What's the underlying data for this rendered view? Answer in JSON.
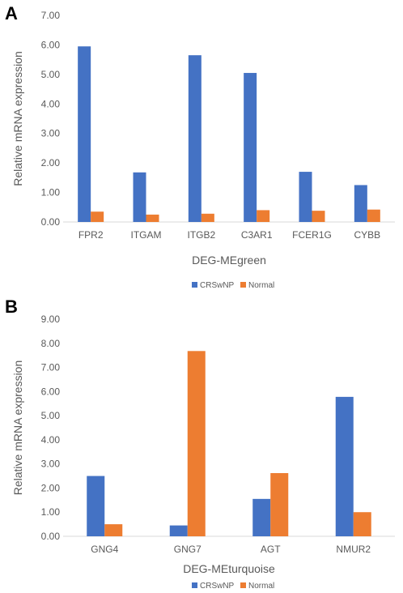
{
  "chart_data": [
    {
      "panel": "A",
      "type": "bar",
      "title": "",
      "xlabel": "DEG-MEgreen",
      "ylabel": "Relative mRNA expression",
      "ylim": [
        0,
        7
      ],
      "yticks": [
        "0.00",
        "1.00",
        "2.00",
        "3.00",
        "4.00",
        "5.00",
        "6.00",
        "7.00"
      ],
      "categories": [
        "FPR2",
        "ITGAM",
        "ITGB2",
        "C3AR1",
        "FCER1G",
        "CYBB"
      ],
      "series": [
        {
          "name": "CRSwNP",
          "color": "#4472C4",
          "values": [
            5.95,
            1.68,
            5.65,
            5.05,
            1.7,
            1.25
          ]
        },
        {
          "name": "Normal",
          "color": "#ED7D31",
          "values": [
            0.35,
            0.25,
            0.28,
            0.4,
            0.38,
            0.42
          ]
        }
      ],
      "grid": false,
      "legend": "bottom"
    },
    {
      "panel": "B",
      "type": "bar",
      "title": "",
      "xlabel": "DEG-MEturquoise",
      "ylabel": "Relative mRNA expression",
      "ylim": [
        0,
        9
      ],
      "yticks": [
        "0.00",
        "1.00",
        "2.00",
        "3.00",
        "4.00",
        "5.00",
        "6.00",
        "7.00",
        "8.00",
        "9.00"
      ],
      "categories": [
        "GNG4",
        "GNG7",
        "AGT",
        "NMUR2"
      ],
      "series": [
        {
          "name": "CRSwNP",
          "color": "#4472C4",
          "values": [
            2.5,
            0.45,
            1.55,
            5.78
          ]
        },
        {
          "name": "Normal",
          "color": "#ED7D31",
          "values": [
            0.5,
            7.68,
            2.62,
            1.0
          ]
        }
      ],
      "grid": false,
      "legend": "bottom"
    }
  ]
}
